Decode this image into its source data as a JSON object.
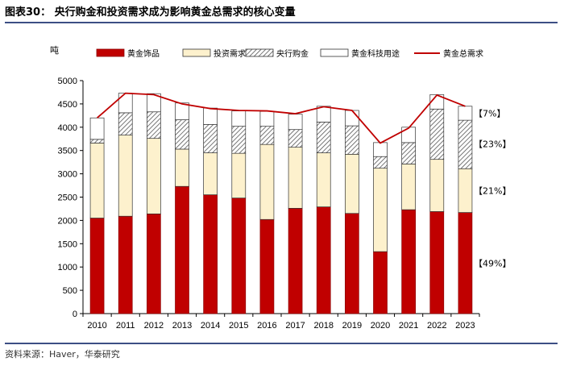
{
  "header": {
    "title": "图表30：  央行购金和投资需求成为影响黄金总需求的核心变量"
  },
  "footer": {
    "source": "资料来源：Haver，华泰研究"
  },
  "colors": {
    "jewelry": "#c00000",
    "investment": "#fdf1cd",
    "central_bank": "#ffffff",
    "technology": "#ffffff",
    "total_line": "#c00000",
    "rule": "#3c4f84"
  },
  "chart_data": {
    "type": "bar",
    "stacked": true,
    "unit_label": "吨",
    "categories": [
      "2010",
      "2011",
      "2012",
      "2013",
      "2014",
      "2015",
      "2016",
      "2017",
      "2018",
      "2019",
      "2020",
      "2021",
      "2022",
      "2023"
    ],
    "ylim": [
      0,
      5000
    ],
    "yticks": [
      0,
      500,
      1000,
      1500,
      2000,
      2500,
      3000,
      3500,
      4000,
      4500,
      5000
    ],
    "grid": false,
    "legend_position": "top",
    "series": [
      {
        "name": "黄金饰品",
        "key": "jewelry",
        "pattern": "solid",
        "values": [
          2050,
          2090,
          2140,
          2730,
          2550,
          2480,
          2020,
          2260,
          2290,
          2150,
          1330,
          2230,
          2190,
          2170
        ]
      },
      {
        "name": "投资需求",
        "key": "investment",
        "pattern": "solid",
        "values": [
          1610,
          1740,
          1620,
          800,
          900,
          960,
          1610,
          1310,
          1160,
          1270,
          1790,
          980,
          1120,
          940
        ]
      },
      {
        "name": "央行购金",
        "key": "central_bank",
        "pattern": "hatch",
        "values": [
          80,
          480,
          570,
          630,
          610,
          580,
          390,
          380,
          660,
          610,
          250,
          460,
          1080,
          1040
        ]
      },
      {
        "name": "黄金科技用途",
        "key": "technology",
        "pattern": "solid",
        "values": [
          460,
          420,
          390,
          360,
          350,
          330,
          320,
          330,
          340,
          330,
          300,
          330,
          310,
          300
        ]
      }
    ],
    "line": {
      "name": "黄金总需求",
      "values": [
        4200,
        4730,
        4700,
        4500,
        4400,
        4360,
        4350,
        4290,
        4440,
        4360,
        3660,
        3980,
        4690,
        4450
      ]
    },
    "annotations": [
      {
        "text": "【7%】",
        "y": 4300
      },
      {
        "text": "【23%】",
        "y": 3640
      },
      {
        "text": "【21%】",
        "y": 2640
      },
      {
        "text": "【49%】",
        "y": 1085
      }
    ]
  }
}
